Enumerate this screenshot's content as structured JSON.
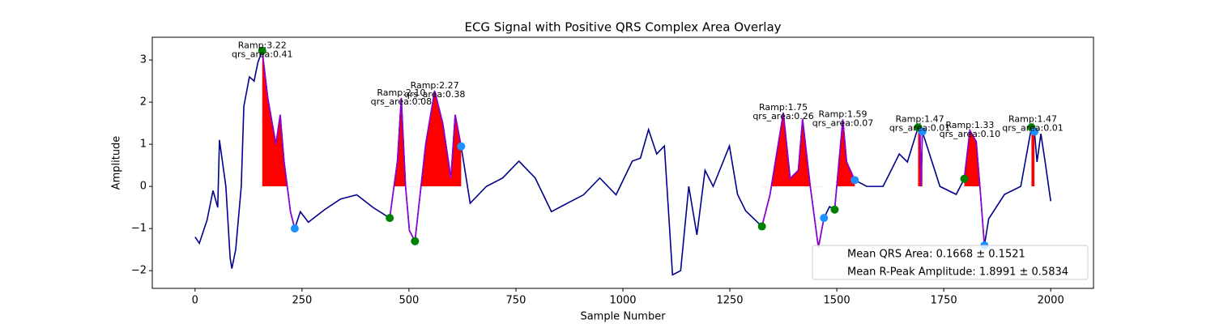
{
  "chart_data": {
    "type": "line",
    "title": "ECG Signal with Positive QRS Complex Area Overlay",
    "x_label": "Sample Number",
    "y_label": "Amplitude",
    "xlim": [
      -100,
      2100
    ],
    "ylim": [
      -2.42,
      3.54
    ],
    "xticks": [
      0,
      250,
      500,
      750,
      1000,
      1250,
      1500,
      1750,
      2000
    ],
    "yticks": [
      {
        "value": -2,
        "label": "−2"
      },
      {
        "value": -1,
        "label": "−1"
      },
      0,
      1,
      2,
      3
    ],
    "x": [
      0,
      10,
      28,
      42,
      53,
      57,
      72,
      82,
      86,
      95,
      108,
      114,
      127,
      138,
      147,
      157,
      170,
      189,
      199,
      208,
      223,
      233,
      246,
      265,
      303,
      340,
      378,
      416,
      455,
      473,
      482,
      492,
      501,
      514,
      539,
      560,
      579,
      598,
      608,
      622,
      643,
      681,
      719,
      757,
      795,
      833,
      870,
      908,
      946,
      984,
      1022,
      1041,
      1060,
      1079,
      1097,
      1116,
      1135,
      1154,
      1173,
      1192,
      1211,
      1249,
      1268,
      1287,
      1325,
      1344,
      1375,
      1391,
      1410,
      1420,
      1438,
      1457,
      1470,
      1483,
      1495,
      1514,
      1523,
      1542,
      1570,
      1608,
      1627,
      1646,
      1665,
      1690,
      1694,
      1697,
      1700,
      1741,
      1779,
      1798,
      1811,
      1826,
      1836,
      1845,
      1855,
      1892,
      1930,
      1955,
      1958,
      1962,
      1968,
      1977,
      1987,
      2000
    ],
    "series": [
      {
        "color": "#00008b",
        "values": [
          -1.2,
          -1.35,
          -0.8,
          -0.1,
          -0.5,
          1.1,
          0.0,
          -1.7,
          -1.95,
          -1.5,
          0.0,
          1.9,
          2.6,
          2.5,
          2.95,
          3.22,
          2.1,
          1.0,
          1.7,
          0.6,
          -0.6,
          -1.0,
          -0.6,
          -0.85,
          -0.55,
          -0.3,
          -0.2,
          -0.5,
          -0.75,
          0.6,
          2.1,
          0.0,
          -1.05,
          -1.3,
          1.0,
          2.27,
          1.5,
          0.2,
          1.7,
          0.95,
          -0.4,
          0.0,
          0.2,
          0.6,
          0.2,
          -0.6,
          -0.4,
          -0.2,
          0.2,
          -0.2,
          0.6,
          0.67,
          1.35,
          0.77,
          0.96,
          -2.1,
          -2.0,
          0.0,
          -1.15,
          0.38,
          0.0,
          0.96,
          -0.19,
          -0.58,
          -0.95,
          -0.19,
          1.75,
          0.19,
          0.38,
          1.6,
          0.0,
          -1.45,
          -0.75,
          -0.48,
          -0.55,
          1.59,
          0.58,
          0.15,
          0.0,
          0.0,
          0.38,
          0.77,
          0.58,
          1.4,
          1.47,
          0.0,
          1.3,
          0.0,
          -0.19,
          0.18,
          1.33,
          1.06,
          -0.19,
          -1.4,
          -0.77,
          -0.19,
          0.0,
          1.4,
          1.47,
          1.3,
          0.58,
          1.25,
          0.58,
          -0.35
        ]
      }
    ],
    "qrs_color": "#9400d3",
    "area_color": "#ff0000",
    "onset_color": "#008000",
    "offset_color": "#1e90ff",
    "complexes": [
      {
        "onset": 157,
        "offset": 233,
        "peak": 157,
        "r_amp": 3.22,
        "r_amp_label": "Ramp:3.22",
        "area": 0.41,
        "area_label": "qrs_area:0.41"
      },
      {
        "onset": 455,
        "offset": 514,
        "peak": 482,
        "r_amp": 2.1,
        "r_amp_label": "Ramp:2.10",
        "area": 0.08,
        "area_label": "qrs_area:0.08"
      },
      {
        "onset": 514,
        "offset": 622,
        "peak": 560,
        "r_amp": 2.27,
        "r_amp_label": "Ramp:2.27",
        "area": 0.38,
        "area_label": "qrs_area:0.38"
      },
      {
        "onset": 1325,
        "offset": 1470,
        "peak": 1375,
        "r_amp": 1.75,
        "r_amp_label": "Ramp:1.75",
        "area": 0.26,
        "area_label": "qrs_area:0.26"
      },
      {
        "onset": 1495,
        "offset": 1542,
        "peak": 1514,
        "r_amp": 1.59,
        "r_amp_label": "Ramp:1.59",
        "area": 0.07,
        "area_label": "qrs_area:0.07"
      },
      {
        "onset": 1690,
        "offset": 1700,
        "peak": 1694,
        "r_amp": 1.47,
        "r_amp_label": "Ramp:1.47",
        "area": 0.01,
        "area_label": "qrs_area:0.01"
      },
      {
        "onset": 1798,
        "offset": 1845,
        "peak": 1811,
        "r_amp": 1.33,
        "r_amp_label": "Ramp:1.33",
        "area": 0.1,
        "area_label": "qrs_area:0.10"
      },
      {
        "onset": 1955,
        "offset": 1962,
        "peak": 1958,
        "r_amp": 1.47,
        "r_amp_label": "Ramp:1.47",
        "area": 0.01,
        "area_label": "qrs_area:0.01"
      }
    ],
    "legend": [
      "Mean QRS Area: 0.1668 ± 0.1521",
      "Mean R-Peak Amplitude: 1.8991 ± 0.5834"
    ]
  }
}
